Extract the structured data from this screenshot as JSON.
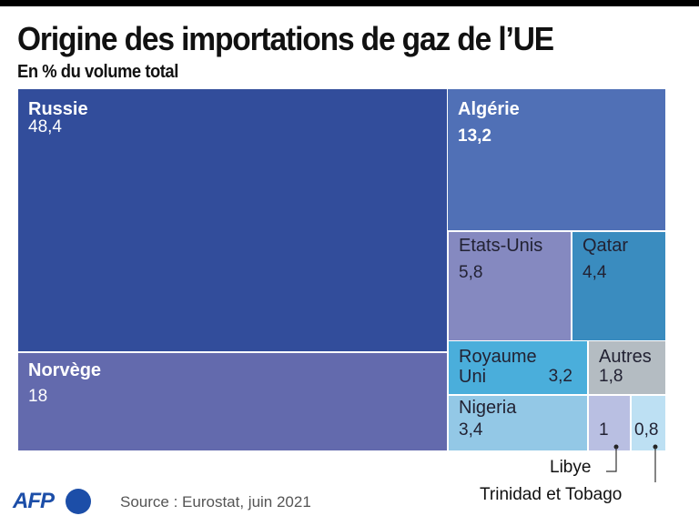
{
  "chart_data": {
    "type": "treemap",
    "title": "Origine des importations de gaz de l’UE",
    "subtitle": "En % du volume total",
    "unit": "%",
    "items": [
      {
        "id": "russie",
        "name": "Russie",
        "value": 48.4,
        "label": "48,4",
        "color": "#324d9b",
        "text": "light",
        "value_bold": false
      },
      {
        "id": "norvege",
        "name": "Norvège",
        "value": 18,
        "label": "18",
        "color": "#636aad",
        "text": "light",
        "value_bold": false
      },
      {
        "id": "algerie",
        "name": "Algérie",
        "value": 13.2,
        "label": "13,2",
        "color": "#5070b6",
        "text": "light",
        "value_bold": true
      },
      {
        "id": "etats-unis",
        "name": "Etats-Unis",
        "value": 5.8,
        "label": "5,8",
        "color": "#8589c0",
        "text": "dark",
        "value_bold": false
      },
      {
        "id": "qatar",
        "name": "Qatar",
        "value": 4.4,
        "label": "4,4",
        "color": "#3a8cbf",
        "text": "dark",
        "value_bold": false
      },
      {
        "id": "royaume-uni",
        "name": "Royaume Uni",
        "value": 3.2,
        "label": "3,2",
        "color": "#4aaedb",
        "text": "dark",
        "value_bold": false
      },
      {
        "id": "autres",
        "name": "Autres",
        "value": 1.8,
        "label": "1,8",
        "color": "#b4bcc2",
        "text": "dark",
        "value_bold": false
      },
      {
        "id": "nigeria",
        "name": "Nigeria",
        "value": 3.4,
        "label": "3,4",
        "color": "#93c8e6",
        "text": "dark",
        "value_bold": false
      },
      {
        "id": "libye",
        "name": "Libye",
        "value": 1,
        "label": "1",
        "color": "#b9bfe2",
        "text": "dark",
        "value_bold": false
      },
      {
        "id": "trinidad",
        "name": "Trinidad et Tobago",
        "value": 0.8,
        "label": "0,8",
        "color": "#bde0f3",
        "text": "dark",
        "value_bold": false
      }
    ],
    "royaume_uni_lines": [
      "Royaume",
      "Uni"
    ],
    "source": "Source : Eurostat, juin 2021",
    "logo": "AFP"
  }
}
